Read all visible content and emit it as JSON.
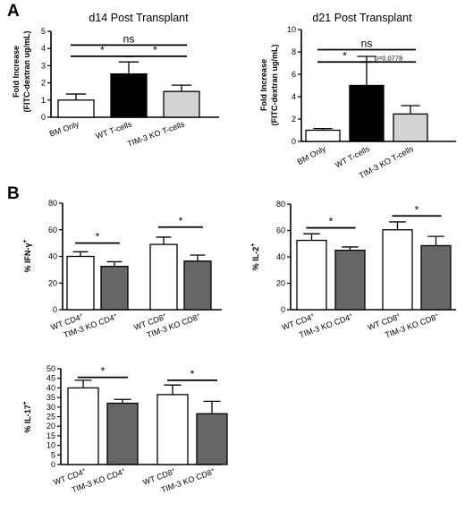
{
  "panel_labels": [
    "A",
    "B"
  ],
  "chart_data": [
    {
      "type": "bar",
      "title": "d14 Post Transplant",
      "ylabel": "Fold Increase\n(FITC-dextran ug/mL)",
      "ylim": [
        0,
        5
      ],
      "yticks": [
        0,
        1,
        2,
        3,
        4,
        5
      ],
      "categories": [
        "BM Only",
        "WT T-cells",
        "TIM-3 KO T-cells"
      ],
      "values": [
        1.0,
        2.52,
        1.5
      ],
      "errors": [
        0.35,
        0.7,
        0.37
      ],
      "colors": [
        "#ffffff",
        "#000000",
        "#d3d3d3"
      ],
      "significance": [
        {
          "from": 0,
          "to": 2,
          "label": "ns",
          "y": 4.2
        },
        {
          "from": 0,
          "to": 1,
          "label": "*",
          "y": 3.55
        },
        {
          "from": 1,
          "to": 2,
          "label": "*",
          "y": 3.55
        }
      ]
    },
    {
      "type": "bar",
      "title": "d21 Post Transplant",
      "ylabel": "Fold Increase\n(FITC-dextran ug/mL)",
      "ylim": [
        0,
        10
      ],
      "yticks": [
        0,
        2,
        4,
        6,
        8,
        10
      ],
      "categories": [
        "BM Only",
        "WT T-cells",
        "TIM-3 KO T-cells"
      ],
      "values": [
        1.0,
        5.0,
        2.45
      ],
      "errors": [
        0.15,
        2.6,
        0.75
      ],
      "colors": [
        "#ffffff",
        "#000000",
        "#d3d3d3"
      ],
      "significance": [
        {
          "from": 0,
          "to": 2,
          "label": "ns",
          "y": 8.2
        },
        {
          "from": 0,
          "to": 1,
          "label": "*",
          "y": 7.1
        },
        {
          "from": 1,
          "to": 2,
          "label": "p=0.0778",
          "y": 7.1
        }
      ]
    },
    {
      "type": "bar",
      "title": "",
      "ylabel": "% IFN-γ+",
      "ylim": [
        0,
        80
      ],
      "yticks": [
        0,
        20,
        40,
        60,
        80
      ],
      "categories": [
        "WT CD4+",
        "TIM-3 KO CD4+",
        "WT CD8+",
        "TIM-3 KO CD8+"
      ],
      "values": [
        40,
        32.5,
        49,
        36.5
      ],
      "errors": [
        3.5,
        3.5,
        5.5,
        4.5
      ],
      "colors": [
        "#ffffff",
        "#666666",
        "#ffffff",
        "#666666"
      ],
      "significance": [
        {
          "from": 0,
          "to": 1,
          "label": "*",
          "y": 50
        },
        {
          "from": 2,
          "to": 3,
          "label": "*",
          "y": 62
        }
      ]
    },
    {
      "type": "bar",
      "title": "",
      "ylabel": "% IL-2+",
      "ylim": [
        0,
        80
      ],
      "yticks": [
        0,
        20,
        40,
        60,
        80
      ],
      "categories": [
        "WT CD4+",
        "TIM-3 KO CD4+",
        "WT CD8+",
        "TIM-3 KO CD8+"
      ],
      "values": [
        52.5,
        45,
        60.5,
        48.5
      ],
      "errors": [
        5,
        2.5,
        6,
        7
      ],
      "colors": [
        "#ffffff",
        "#666666",
        "#ffffff",
        "#666666"
      ],
      "significance": [
        {
          "from": 0,
          "to": 1,
          "label": "*",
          "y": 62
        },
        {
          "from": 2,
          "to": 3,
          "label": "*",
          "y": 71
        }
      ]
    },
    {
      "type": "bar",
      "title": "",
      "ylabel": "% IL-17+",
      "ylim": [
        0,
        50
      ],
      "yticks": [
        0,
        5,
        10,
        15,
        20,
        25,
        30,
        35,
        40,
        45,
        50
      ],
      "categories": [
        "WT CD4+",
        "TIM-3 KO CD4+",
        "WT CD8+",
        "TIM-3 KO CD8+"
      ],
      "values": [
        40,
        32,
        36.5,
        26.5
      ],
      "errors": [
        4,
        2,
        5,
        6.5
      ],
      "colors": [
        "#ffffff",
        "#666666",
        "#ffffff",
        "#666666"
      ],
      "significance": [
        {
          "from": 0,
          "to": 1,
          "label": "*",
          "y": 45.5
        },
        {
          "from": 2,
          "to": 3,
          "label": "*",
          "y": 44
        }
      ]
    }
  ]
}
